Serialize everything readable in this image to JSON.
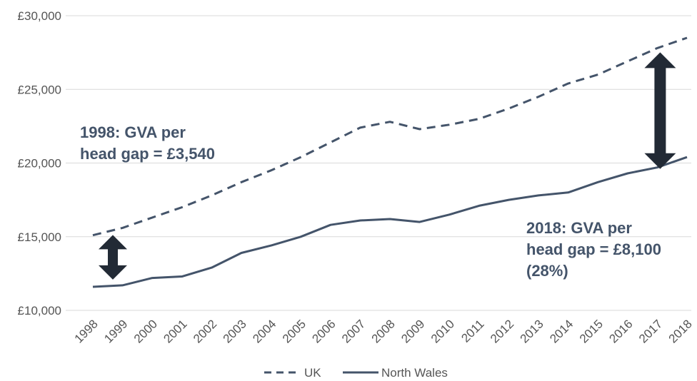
{
  "chart_data": {
    "type": "line",
    "categories": [
      "1998",
      "1999",
      "2000",
      "2001",
      "2002",
      "2003",
      "2004",
      "2005",
      "2006",
      "2007",
      "2008",
      "2009",
      "2010",
      "2011",
      "2012",
      "2013",
      "2014",
      "2015",
      "2016",
      "2017",
      "2018"
    ],
    "series": [
      {
        "name": "UK",
        "style": "dashed",
        "color": "#44546a",
        "values": [
          15100,
          15600,
          16300,
          17000,
          17800,
          18700,
          19500,
          20400,
          21400,
          22400,
          22800,
          22300,
          22600,
          23000,
          23700,
          24500,
          25400,
          26000,
          26900,
          27800,
          28500
        ]
      },
      {
        "name": "North Wales",
        "style": "solid",
        "color": "#44546a",
        "values": [
          11600,
          11700,
          12200,
          12300,
          12900,
          13900,
          14400,
          15000,
          15800,
          16100,
          16200,
          16000,
          16500,
          17100,
          17500,
          17800,
          18000,
          18700,
          19300,
          19700,
          20400
        ]
      }
    ],
    "yticks": [
      "£10,000",
      "£15,000",
      "£20,000",
      "£25,000",
      "£30,000"
    ],
    "ylim": [
      10000,
      30000
    ],
    "grid": true,
    "legend": "bottom",
    "annotations": {
      "gap_1998": {
        "lines": [
          "1998: GVA per",
          "head gap = £3,540"
        ]
      },
      "gap_2018": {
        "lines": [
          "2018: GVA per",
          "head gap = £8,100",
          "(28%)"
        ]
      }
    },
    "arrow_color": "#222a35"
  }
}
